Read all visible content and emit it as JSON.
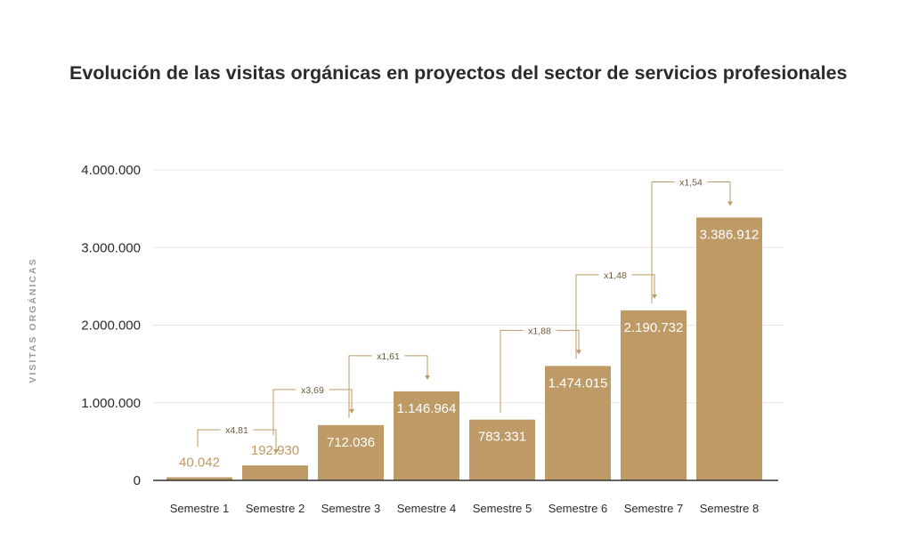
{
  "chart_data": {
    "type": "bar",
    "title": "Evolución de las visitas orgánicas en proyectos del sector de servicios profesionales",
    "ylabel": "VISITAS ORGÁNICAS",
    "xlabel": "",
    "ylim": [
      0,
      4000000
    ],
    "yticks": [
      0,
      1000000,
      2000000,
      3000000,
      4000000
    ],
    "ytick_labels": [
      "0",
      "1.000.000",
      "2.000.000",
      "3.000.000",
      "4.000.000"
    ],
    "grid": true,
    "categories": [
      "Semestre 1",
      "Semestre 2",
      "Semestre 3",
      "Semestre 4",
      "Semestre 5",
      "Semestre 6",
      "Semestre 7",
      "Semestre 8"
    ],
    "values": [
      40042,
      192930,
      712036,
      1146964,
      783331,
      1474015,
      2190732,
      3386912
    ],
    "value_labels": [
      "40.042",
      "192.930",
      "712.036",
      "1.146.964",
      "783.331",
      "1.474.015",
      "2.190.732",
      "3.386.912"
    ],
    "growth_annotations": [
      {
        "from": 0,
        "to": 1,
        "label": "x4,81"
      },
      {
        "from": 1,
        "to": 2,
        "label": "x3,69"
      },
      {
        "from": 2,
        "to": 3,
        "label": "x1,61"
      },
      {
        "from": 4,
        "to": 5,
        "label": "x1,88"
      },
      {
        "from": 5,
        "to": 6,
        "label": "x1,48"
      },
      {
        "from": 6,
        "to": 7,
        "label": "x1,54"
      }
    ],
    "colors": {
      "bar": "#bd9a66",
      "label_outside": "#bd9a66",
      "label_inside": "#ffffff",
      "grid": "#e6e6e6",
      "axis": "#333333",
      "annotation": "#bd9a66"
    }
  }
}
